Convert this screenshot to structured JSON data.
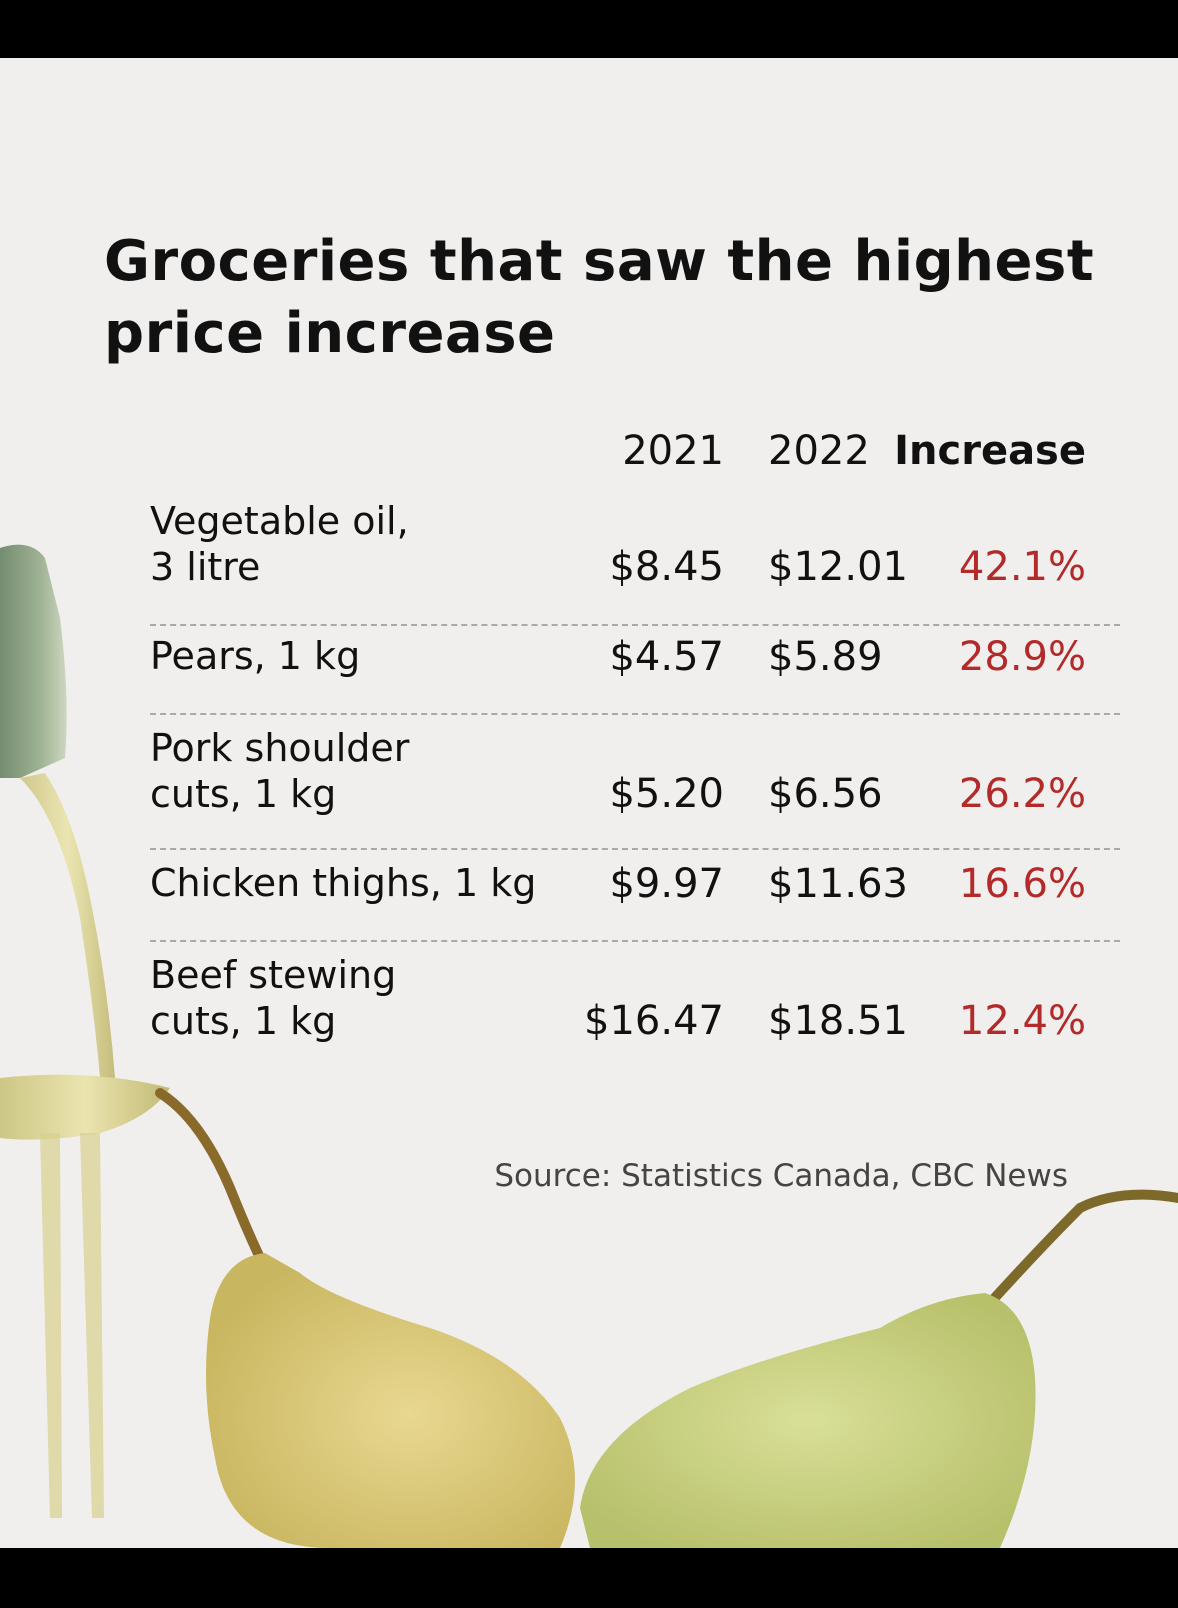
{
  "title": "Groceries that saw the highest price increase",
  "source": "Source: Statistics Canada, CBC News",
  "colors": {
    "increase_text": "#b22a2a",
    "background": "#f1efed"
  },
  "chart_data": {
    "type": "table",
    "title": "Groceries that saw the highest price increase",
    "columns": [
      "2021",
      "2022",
      "Increase"
    ],
    "rows": [
      {
        "item_lines": [
          "Vegetable oil,",
          "3 litre"
        ],
        "price_2021": "$8.45",
        "price_2022": "$12.01",
        "increase": "42.1%"
      },
      {
        "item_lines": [
          "Pears, 1 kg"
        ],
        "price_2021": "$4.57",
        "price_2022": "$5.89",
        "increase": "28.9%"
      },
      {
        "item_lines": [
          "Pork shoulder",
          "cuts, 1 kg"
        ],
        "price_2021": "$5.20",
        "price_2022": "$6.56",
        "increase": "26.2%"
      },
      {
        "item_lines": [
          "Chicken thighs, 1 kg"
        ],
        "price_2021": "$9.97",
        "price_2022": "$11.63",
        "increase": "16.6%"
      },
      {
        "item_lines": [
          "Beef stewing",
          "cuts, 1 kg"
        ],
        "price_2021": "$16.47",
        "price_2022": "$18.51",
        "increase": "12.4%"
      }
    ]
  }
}
